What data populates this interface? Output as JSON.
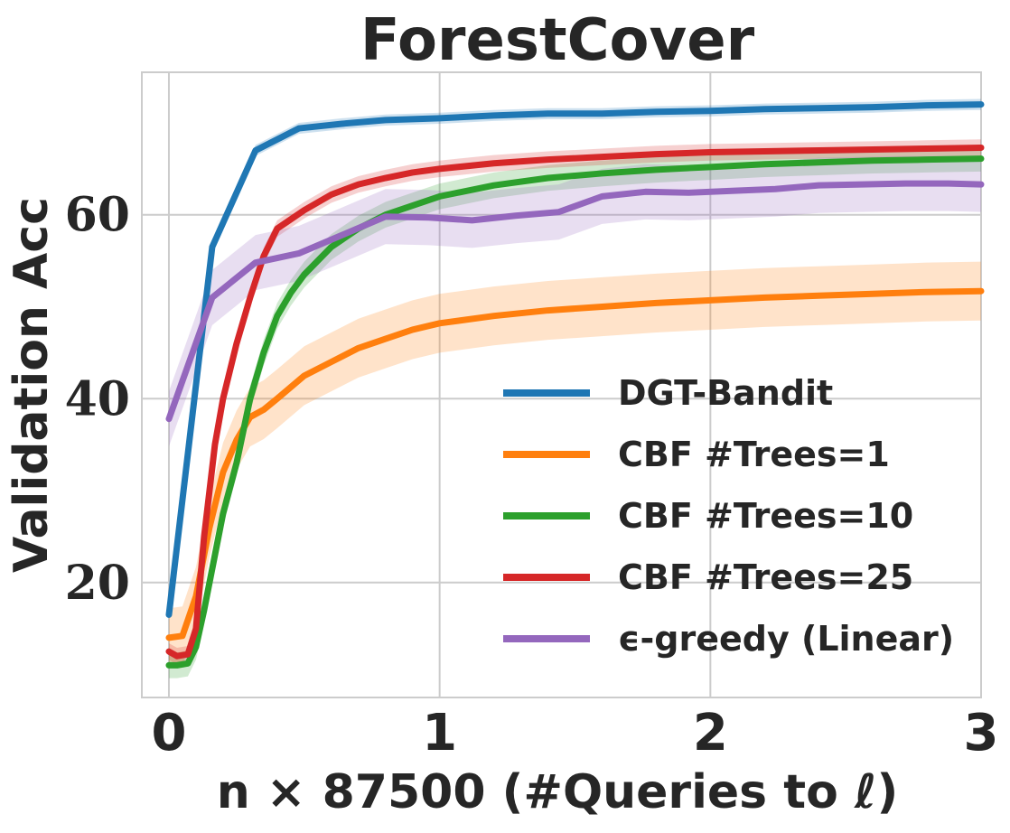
{
  "chart_data": {
    "type": "line",
    "title": "ForestCover",
    "xlabel": "n × 87500 (#Queries to ℓ)",
    "ylabel": "Validation Acc",
    "xlim": [
      -0.1,
      3.0
    ],
    "ylim": [
      7.5,
      75.5
    ],
    "xticks": [
      0,
      1,
      2,
      3
    ],
    "xtick_labels": [
      "0",
      "1",
      "2",
      "3"
    ],
    "yticks": [
      20,
      40,
      60
    ],
    "ytick_labels": [
      "20",
      "40",
      "60"
    ],
    "grid": true,
    "legend_position": "lower-right",
    "series": [
      {
        "name": "DGT-Bandit",
        "color": "#1f77b4",
        "x": [
          0,
          0.16,
          0.32,
          0.48,
          0.64,
          0.8,
          1.0,
          1.2,
          1.4,
          1.6,
          1.8,
          2.0,
          2.2,
          2.4,
          2.6,
          2.8,
          3.0
        ],
        "y": [
          16.5,
          56.5,
          67.0,
          69.4,
          69.9,
          70.3,
          70.5,
          70.8,
          71.0,
          71.0,
          71.2,
          71.3,
          71.5,
          71.6,
          71.7,
          71.9,
          72.0
        ],
        "band": 0.6
      },
      {
        "name": "CBF #Trees=1",
        "color": "#ff7f0e",
        "x": [
          0,
          0.05,
          0.1,
          0.15,
          0.2,
          0.25,
          0.3,
          0.35,
          0.4,
          0.5,
          0.6,
          0.7,
          0.8,
          0.9,
          1.0,
          1.2,
          1.4,
          1.6,
          1.8,
          2.0,
          2.2,
          2.4,
          2.6,
          2.8,
          3.0
        ],
        "y": [
          14.0,
          14.2,
          18.5,
          26.0,
          32.0,
          35.5,
          38.0,
          38.8,
          40.0,
          42.5,
          44.0,
          45.5,
          46.5,
          47.5,
          48.2,
          49.0,
          49.6,
          50.0,
          50.4,
          50.7,
          51.0,
          51.2,
          51.4,
          51.6,
          51.7
        ],
        "band": 3.2
      },
      {
        "name": "CBF #Trees=10",
        "color": "#2ca02c",
        "x": [
          0,
          0.03,
          0.07,
          0.1,
          0.13,
          0.17,
          0.2,
          0.25,
          0.3,
          0.35,
          0.4,
          0.45,
          0.5,
          0.6,
          0.7,
          0.8,
          0.9,
          1.0,
          1.2,
          1.4,
          1.6,
          1.8,
          2.0,
          2.2,
          2.4,
          2.6,
          2.8,
          3.0
        ],
        "y": [
          11.0,
          11.0,
          11.2,
          13.0,
          17.0,
          23.0,
          27.5,
          33.0,
          40.0,
          45.0,
          49.0,
          51.5,
          53.5,
          56.5,
          58.5,
          60.0,
          61.0,
          62.0,
          63.2,
          64.0,
          64.5,
          64.9,
          65.2,
          65.5,
          65.7,
          65.9,
          66.0,
          66.1
        ],
        "band": 1.4
      },
      {
        "name": "CBF #Trees=25",
        "color": "#d62728",
        "x": [
          0,
          0.03,
          0.07,
          0.1,
          0.13,
          0.17,
          0.2,
          0.25,
          0.3,
          0.35,
          0.4,
          0.45,
          0.5,
          0.6,
          0.7,
          0.8,
          0.9,
          1.0,
          1.2,
          1.4,
          1.6,
          1.8,
          2.0,
          2.2,
          2.4,
          2.6,
          2.8,
          3.0
        ],
        "y": [
          12.5,
          12.0,
          12.2,
          15.0,
          25.0,
          35.0,
          40.0,
          46.0,
          51.0,
          55.5,
          58.5,
          59.5,
          60.5,
          62.2,
          63.3,
          64.0,
          64.6,
          65.0,
          65.6,
          66.0,
          66.3,
          66.6,
          66.8,
          66.9,
          67.0,
          67.1,
          67.2,
          67.3
        ],
        "band": 0.9
      },
      {
        "name": "ϵ-greedy (Linear)",
        "color": "#9467bd",
        "x": [
          0,
          0.16,
          0.32,
          0.48,
          0.64,
          0.8,
          0.96,
          1.12,
          1.28,
          1.44,
          1.6,
          1.76,
          1.92,
          2.08,
          2.24,
          2.4,
          2.56,
          2.72,
          2.88,
          3.0
        ],
        "y": [
          37.8,
          51.0,
          54.8,
          55.8,
          57.8,
          59.8,
          59.7,
          59.4,
          59.9,
          60.3,
          62.0,
          62.5,
          62.4,
          62.6,
          62.8,
          63.2,
          63.3,
          63.4,
          63.4,
          63.3
        ],
        "band": 3.0
      }
    ]
  }
}
